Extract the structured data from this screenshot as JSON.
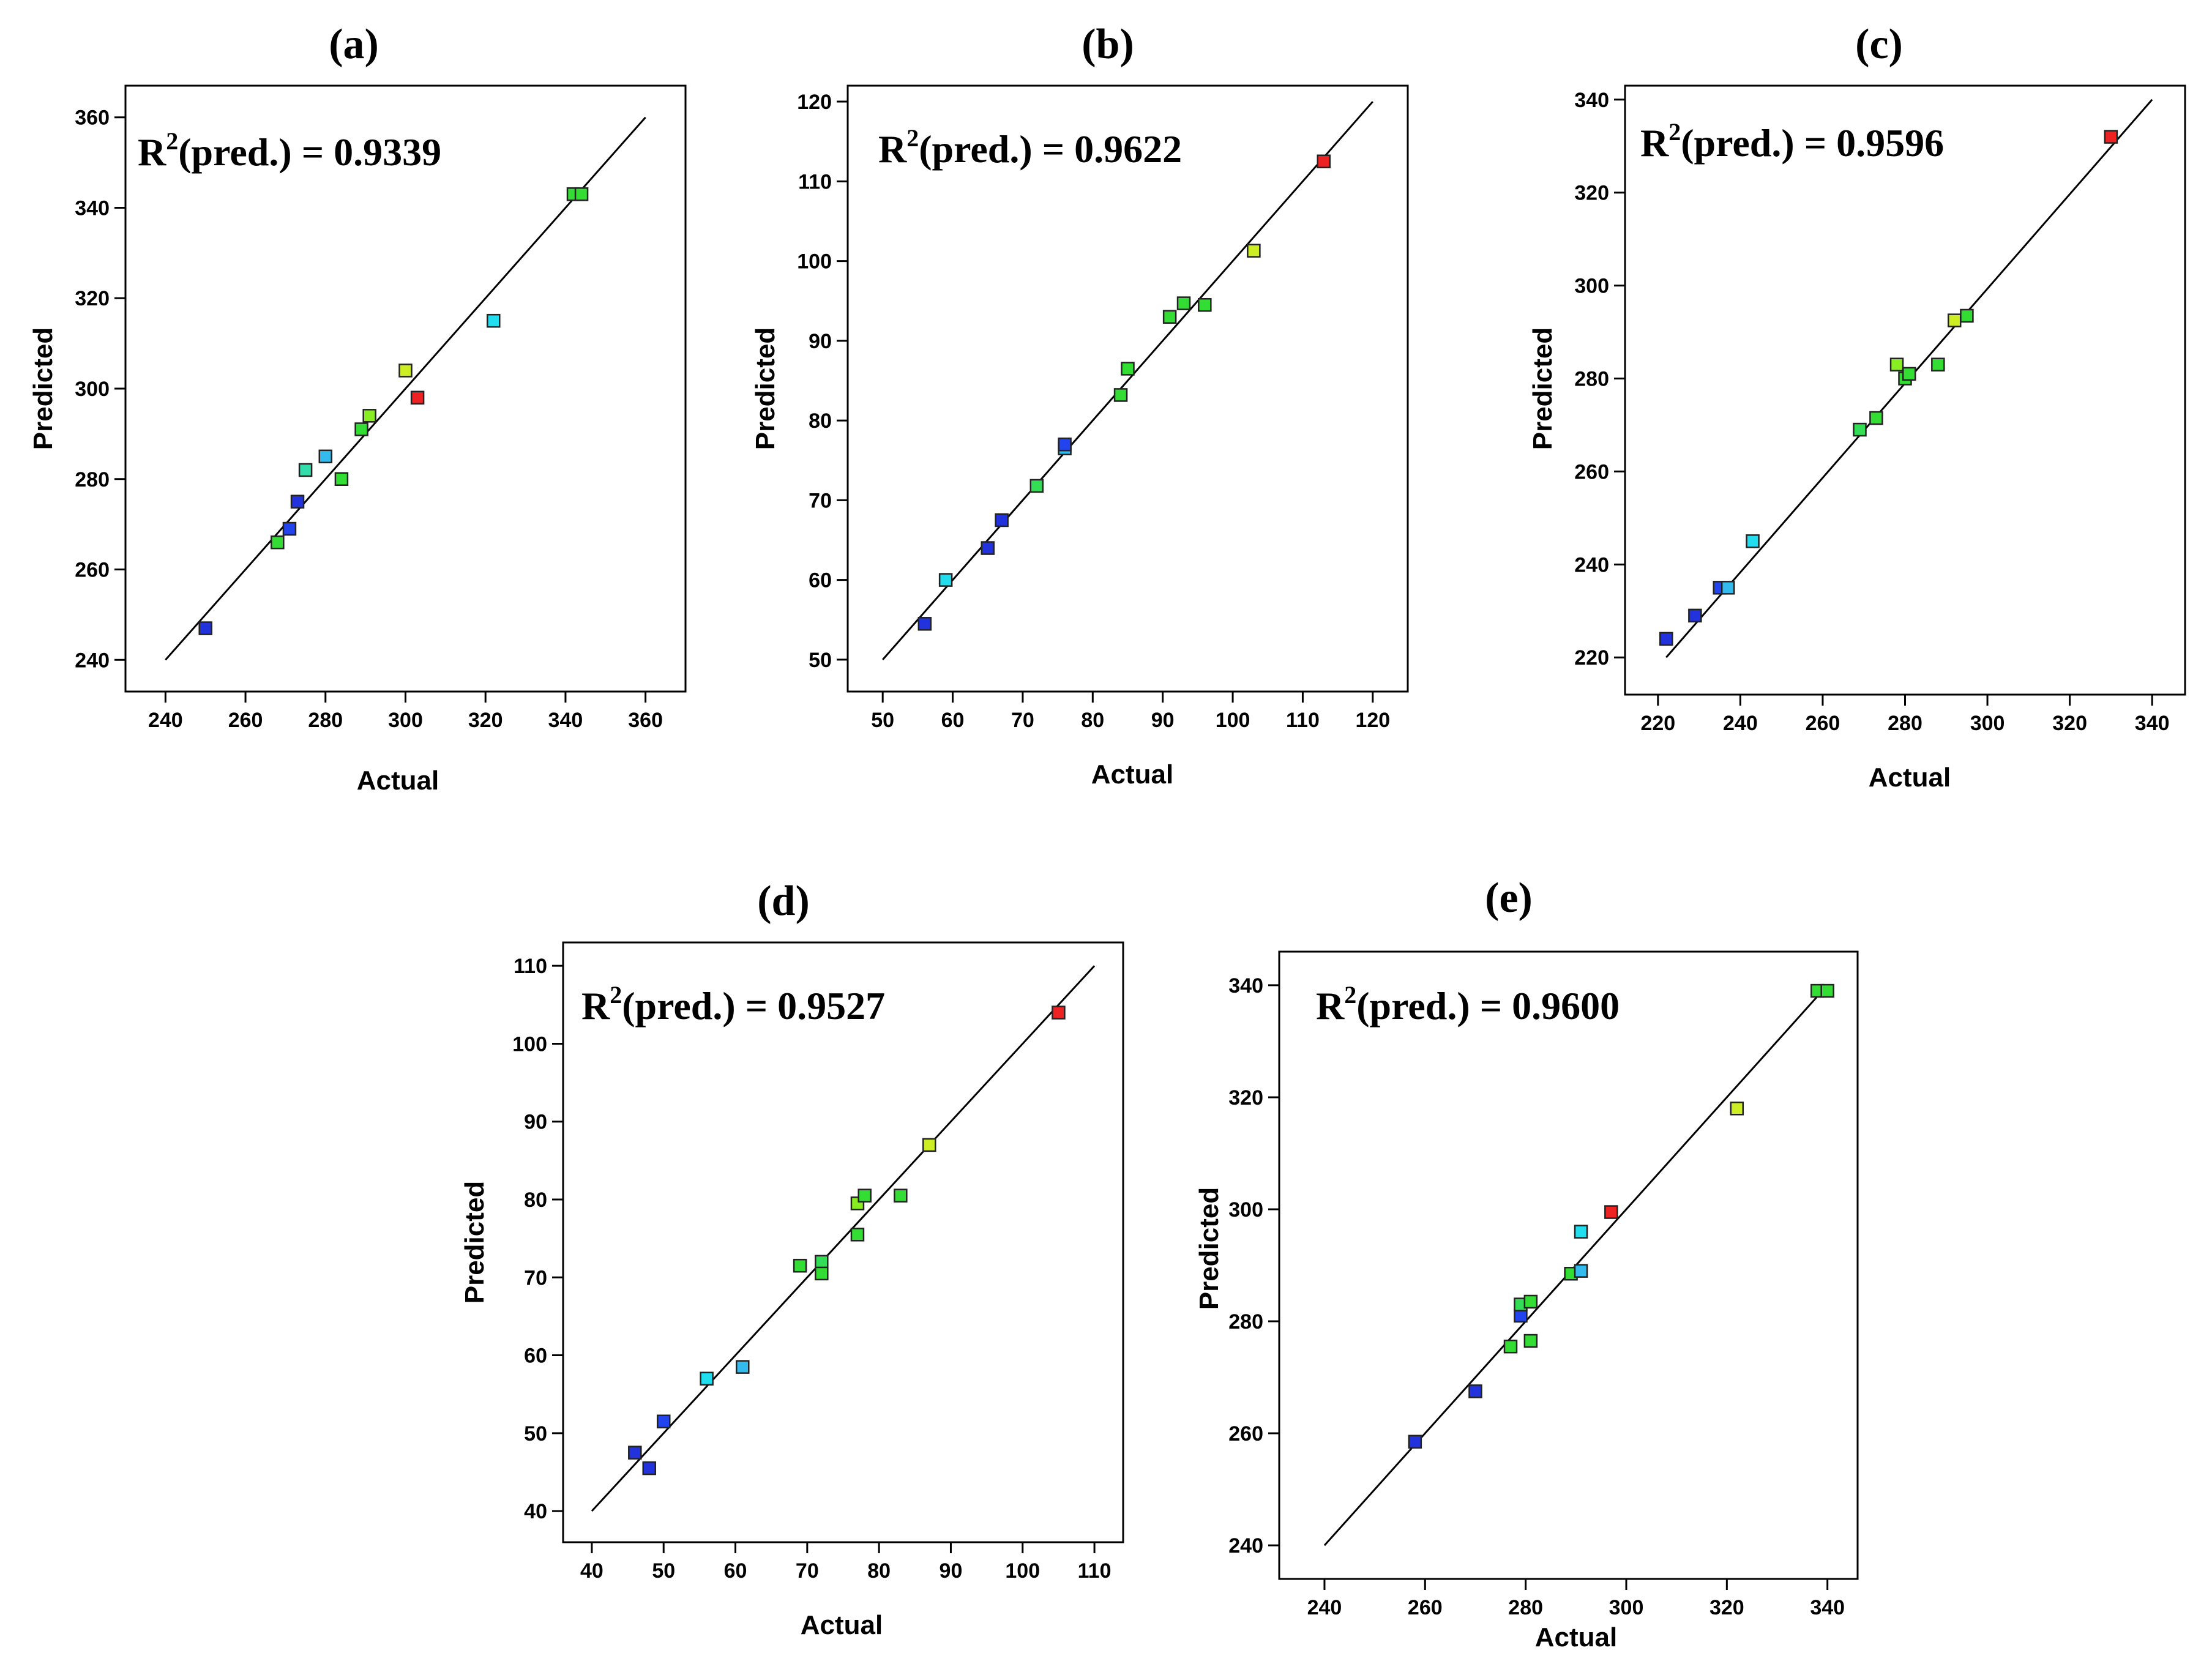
{
  "figure": {
    "panel_order": [
      "a",
      "b",
      "c",
      "d",
      "e"
    ]
  },
  "chart_data": [
    {
      "id": "a",
      "type": "scatter",
      "panel_label": "(a)",
      "annotation": {
        "r2_prefix": "R",
        "r2_sup": "2",
        "r2_rest": "(pred.) = 0.9339"
      },
      "xlabel": "Actual",
      "ylabel": "Predicted",
      "xlim": [
        230,
        370
      ],
      "ylim": [
        233,
        367
      ],
      "xticks": [
        240,
        260,
        280,
        300,
        320,
        340,
        360
      ],
      "yticks": [
        240,
        260,
        280,
        300,
        320,
        340,
        360
      ],
      "fit_line": [
        [
          240,
          240
        ],
        [
          360,
          360
        ]
      ],
      "points": [
        {
          "x": 250,
          "y": 247,
          "color": "#2233dd"
        },
        {
          "x": 268,
          "y": 266,
          "color": "#33dd33"
        },
        {
          "x": 271,
          "y": 269,
          "color": "#2244ee"
        },
        {
          "x": 273,
          "y": 275,
          "color": "#2233dd"
        },
        {
          "x": 275,
          "y": 282,
          "color": "#33ddaa"
        },
        {
          "x": 280,
          "y": 285,
          "color": "#33bbee"
        },
        {
          "x": 284,
          "y": 280,
          "color": "#33dd33"
        },
        {
          "x": 289,
          "y": 291,
          "color": "#33dd33"
        },
        {
          "x": 291,
          "y": 294,
          "color": "#88ee22"
        },
        {
          "x": 300,
          "y": 304,
          "color": "#ccee22"
        },
        {
          "x": 303,
          "y": 298,
          "color": "#ee2222"
        },
        {
          "x": 322,
          "y": 315,
          "color": "#22ddee"
        },
        {
          "x": 342,
          "y": 343,
          "color": "#33dd33"
        },
        {
          "x": 344,
          "y": 343,
          "color": "#33dd33"
        }
      ]
    },
    {
      "id": "b",
      "type": "scatter",
      "panel_label": "(b)",
      "annotation": {
        "r2_prefix": "R",
        "r2_sup": "2",
        "r2_rest": "(pred.) = 0.9622"
      },
      "xlabel": "Actual",
      "ylabel": "Predicted",
      "xlim": [
        45,
        125
      ],
      "ylim": [
        46,
        122
      ],
      "xticks": [
        50,
        60,
        70,
        80,
        90,
        100,
        110,
        120
      ],
      "yticks": [
        50,
        60,
        70,
        80,
        90,
        100,
        110,
        120
      ],
      "fit_line": [
        [
          50,
          50
        ],
        [
          120,
          120
        ]
      ],
      "points": [
        {
          "x": 56,
          "y": 54.5,
          "color": "#2233dd"
        },
        {
          "x": 59,
          "y": 60,
          "color": "#22ddee"
        },
        {
          "x": 65,
          "y": 64,
          "color": "#2233dd"
        },
        {
          "x": 67,
          "y": 67.5,
          "color": "#2233dd"
        },
        {
          "x": 72,
          "y": 71.8,
          "color": "#33dd55"
        },
        {
          "x": 76,
          "y": 76.5,
          "color": "#33bbee"
        },
        {
          "x": 76,
          "y": 77,
          "color": "#2244ee"
        },
        {
          "x": 84,
          "y": 83.2,
          "color": "#33dd33"
        },
        {
          "x": 85,
          "y": 86.5,
          "color": "#33dd33"
        },
        {
          "x": 91,
          "y": 93,
          "color": "#33dd33"
        },
        {
          "x": 93,
          "y": 94.7,
          "color": "#33dd33"
        },
        {
          "x": 96,
          "y": 94.5,
          "color": "#33dd33"
        },
        {
          "x": 103,
          "y": 101.3,
          "color": "#ccee22"
        },
        {
          "x": 113,
          "y": 112.5,
          "color": "#ee2222"
        }
      ]
    },
    {
      "id": "c",
      "type": "scatter",
      "panel_label": "(c)",
      "annotation": {
        "r2_prefix": "R",
        "r2_sup": "2",
        "r2_rest": "(pred.) = 0.9596"
      },
      "xlabel": "Actual",
      "ylabel": "Predicted",
      "xlim": [
        212,
        348
      ],
      "ylim": [
        212,
        343
      ],
      "xticks": [
        220,
        240,
        260,
        280,
        300,
        320,
        340
      ],
      "yticks": [
        220,
        240,
        260,
        280,
        300,
        320,
        340
      ],
      "fit_line": [
        [
          222,
          220
        ],
        [
          340,
          340
        ]
      ],
      "points": [
        {
          "x": 222,
          "y": 224,
          "color": "#2233dd"
        },
        {
          "x": 229,
          "y": 229,
          "color": "#2233dd"
        },
        {
          "x": 235,
          "y": 235,
          "color": "#2244ee"
        },
        {
          "x": 237,
          "y": 235,
          "color": "#33bbee"
        },
        {
          "x": 243,
          "y": 245,
          "color": "#22ddee"
        },
        {
          "x": 269,
          "y": 269,
          "color": "#33dd55"
        },
        {
          "x": 273,
          "y": 271.5,
          "color": "#33dd33"
        },
        {
          "x": 278,
          "y": 283,
          "color": "#88ee22"
        },
        {
          "x": 280,
          "y": 280,
          "color": "#33dd33"
        },
        {
          "x": 281,
          "y": 281,
          "color": "#33dd33"
        },
        {
          "x": 288,
          "y": 283,
          "color": "#33dd33"
        },
        {
          "x": 292,
          "y": 292.5,
          "color": "#ccee22"
        },
        {
          "x": 295,
          "y": 293.5,
          "color": "#33dd33"
        },
        {
          "x": 330,
          "y": 332,
          "color": "#ee2222"
        }
      ]
    },
    {
      "id": "d",
      "type": "scatter",
      "panel_label": "(d)",
      "annotation": {
        "r2_prefix": "R",
        "r2_sup": "2",
        "r2_rest": "(pred.) = 0.9527"
      },
      "xlabel": "Actual",
      "ylabel": "Predicted",
      "xlim": [
        36,
        114
      ],
      "ylim": [
        36,
        113
      ],
      "xticks": [
        40,
        50,
        60,
        70,
        80,
        90,
        100,
        110
      ],
      "yticks": [
        40,
        50,
        60,
        70,
        80,
        90,
        100,
        110
      ],
      "fit_line": [
        [
          40,
          40
        ],
        [
          110,
          110
        ]
      ],
      "points": [
        {
          "x": 46,
          "y": 47.5,
          "color": "#2233dd"
        },
        {
          "x": 48,
          "y": 45.5,
          "color": "#2233dd"
        },
        {
          "x": 50,
          "y": 51.5,
          "color": "#2244ee"
        },
        {
          "x": 56,
          "y": 57,
          "color": "#22ddee"
        },
        {
          "x": 61,
          "y": 58.5,
          "color": "#33bbee"
        },
        {
          "x": 69,
          "y": 71.5,
          "color": "#33dd33"
        },
        {
          "x": 72,
          "y": 72,
          "color": "#33dd55"
        },
        {
          "x": 72,
          "y": 70.5,
          "color": "#33dd33"
        },
        {
          "x": 77,
          "y": 75.5,
          "color": "#33dd33"
        },
        {
          "x": 77,
          "y": 79.5,
          "color": "#88ee22"
        },
        {
          "x": 78,
          "y": 80.5,
          "color": "#33dd33"
        },
        {
          "x": 83,
          "y": 80.5,
          "color": "#33dd33"
        },
        {
          "x": 87,
          "y": 87,
          "color": "#ccee22"
        },
        {
          "x": 105,
          "y": 104,
          "color": "#ee2222"
        }
      ]
    },
    {
      "id": "e",
      "type": "scatter",
      "panel_label": "(e)",
      "annotation": {
        "r2_prefix": "R",
        "r2_sup": "2",
        "r2_rest": "(pred.) = 0.9600"
      },
      "xlabel": "Actual",
      "ylabel": "Predicted",
      "xlim": [
        231,
        346
      ],
      "ylim": [
        234,
        346
      ],
      "xticks": [
        240,
        260,
        280,
        300,
        320,
        340
      ],
      "yticks": [
        240,
        260,
        280,
        300,
        320,
        340
      ],
      "fit_line": [
        [
          240,
          240
        ],
        [
          340,
          340
        ]
      ],
      "points": [
        {
          "x": 258,
          "y": 258.5,
          "color": "#2233dd"
        },
        {
          "x": 270,
          "y": 267.5,
          "color": "#2233dd"
        },
        {
          "x": 277,
          "y": 275.5,
          "color": "#33dd33"
        },
        {
          "x": 279,
          "y": 281,
          "color": "#2244ee"
        },
        {
          "x": 279,
          "y": 283,
          "color": "#33dd55"
        },
        {
          "x": 281,
          "y": 283.5,
          "color": "#33dd33"
        },
        {
          "x": 281,
          "y": 276.5,
          "color": "#33dd33"
        },
        {
          "x": 289,
          "y": 288.5,
          "color": "#33dd33"
        },
        {
          "x": 291,
          "y": 289,
          "color": "#33bbee"
        },
        {
          "x": 291,
          "y": 296,
          "color": "#22ddee"
        },
        {
          "x": 297,
          "y": 299.5,
          "color": "#ee2222"
        },
        {
          "x": 322,
          "y": 318,
          "color": "#ccee22"
        },
        {
          "x": 338,
          "y": 339,
          "color": "#33dd33"
        },
        {
          "x": 340,
          "y": 339,
          "color": "#33dd33"
        }
      ]
    }
  ]
}
